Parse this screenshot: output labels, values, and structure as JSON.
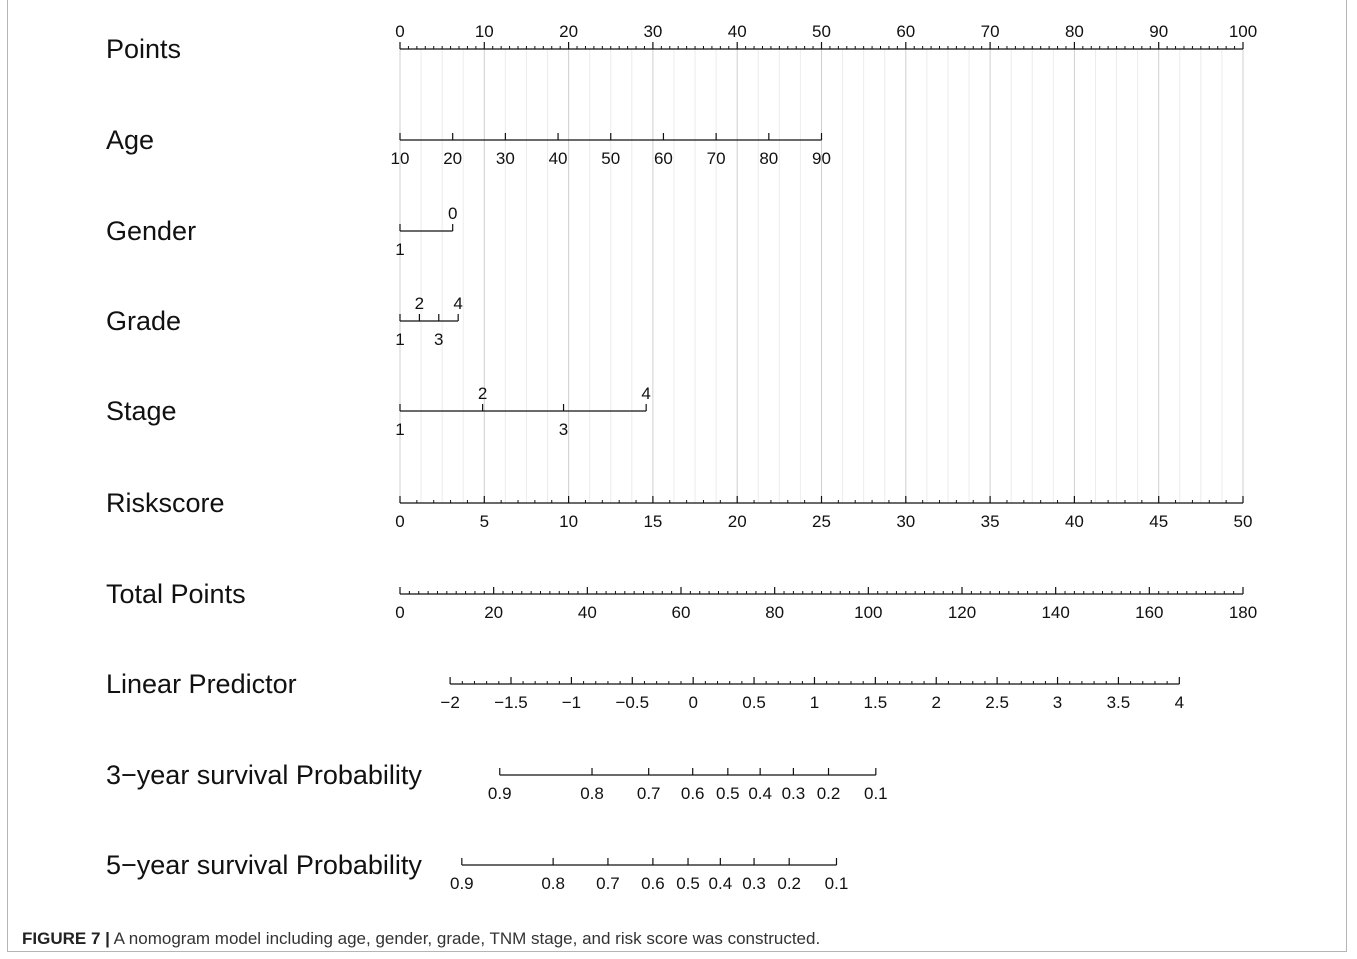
{
  "chart_data": {
    "type": "nomogram",
    "points_scale": {
      "min": 0,
      "max": 100
    },
    "rows": [
      {
        "name": "Points",
        "ticks": [
          "0",
          "10",
          "20",
          "30",
          "40",
          "50",
          "60",
          "70",
          "80",
          "90",
          "100"
        ],
        "tick_points": [
          0,
          10,
          20,
          30,
          40,
          50,
          60,
          70,
          80,
          90,
          100
        ],
        "label_side": "above",
        "minor_count": 10
      },
      {
        "name": "Age",
        "ticks": [
          "10",
          "20",
          "30",
          "40",
          "50",
          "60",
          "70",
          "80",
          "90"
        ],
        "tick_points": [
          0,
          6.25,
          12.5,
          18.75,
          25,
          31.25,
          37.5,
          43.75,
          50
        ],
        "label_side": "below",
        "minor_count": 0
      },
      {
        "name": "Gender",
        "ticks": [
          "1",
          "0"
        ],
        "tick_points": [
          0,
          6.25
        ],
        "label_sides": [
          "below",
          "above"
        ],
        "minor_count": 0
      },
      {
        "name": "Grade",
        "ticks": [
          "1",
          "2",
          "3",
          "4"
        ],
        "tick_points": [
          0,
          2.3,
          4.6,
          6.9
        ],
        "label_sides": [
          "below",
          "above",
          "below",
          "above"
        ],
        "minor_count": 0
      },
      {
        "name": "Stage",
        "ticks": [
          "1",
          "2",
          "3",
          "4"
        ],
        "tick_points": [
          0,
          9.8,
          19.4,
          29.2
        ],
        "label_sides": [
          "below",
          "above",
          "below",
          "above"
        ],
        "minor_count": 0
      },
      {
        "name": "Riskscore",
        "ticks": [
          "0",
          "5",
          "10",
          "15",
          "20",
          "25",
          "30",
          "35",
          "40",
          "45",
          "50"
        ],
        "tick_points": [
          0,
          10,
          20,
          30,
          40,
          50,
          60,
          70,
          80,
          90,
          100
        ],
        "label_side": "below",
        "minor_count": 5
      },
      {
        "name": "Total Points",
        "total_scale": true,
        "ticks": [
          "0",
          "20",
          "40",
          "60",
          "80",
          "100",
          "120",
          "140",
          "160",
          "180"
        ],
        "values": [
          0,
          20,
          40,
          60,
          80,
          100,
          120,
          140,
          160,
          180
        ],
        "max": 180,
        "label_side": "below",
        "minor_count": 10
      },
      {
        "name": "Linear Predictor",
        "ticks": [
          "−2",
          "−1.5",
          "−1",
          "−0.5",
          "0",
          "0.5",
          "1",
          "1.5",
          "2",
          "2.5",
          "3",
          "3.5",
          "4"
        ],
        "total_points_at": [
          10.7,
          23.7,
          36.6,
          49.6,
          62.6,
          75.6,
          88.5,
          101.5,
          114.5,
          127.5,
          140.4,
          153.4,
          166.4
        ],
        "label_side": "below",
        "minor_count": 5
      },
      {
        "name": "3−year survival Probability",
        "ticks": [
          "0.9",
          "0.8",
          "0.7",
          "0.6",
          "0.5",
          "0.4",
          "0.3",
          "0.2",
          "0.1"
        ],
        "total_points_at": [
          21.3,
          41.0,
          53.1,
          62.5,
          70.0,
          76.9,
          84.0,
          91.5,
          101.6
        ],
        "line_start": 21.3,
        "line_end": 101.6,
        "label_side": "below",
        "minor_count": 0
      },
      {
        "name": "5−year survival Probability",
        "ticks": [
          "0.9",
          "0.8",
          "0.7",
          "0.6",
          "0.5",
          "0.4",
          "0.3",
          "0.2",
          "0.1"
        ],
        "total_points_at": [
          13.2,
          32.7,
          44.4,
          54.0,
          61.5,
          68.4,
          75.6,
          83.1,
          93.2
        ],
        "line_start": 13.2,
        "line_end": 93.2,
        "label_side": "below",
        "minor_count": 0
      }
    ]
  },
  "caption": {
    "label": "FIGURE 7 |",
    "text": " A nomogram model including age, gender, grade, TNM stage, and risk score was constructed."
  }
}
